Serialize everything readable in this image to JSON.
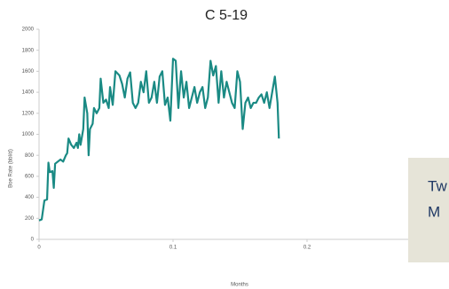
{
  "chart_data": {
    "type": "line",
    "title": "C 5-19",
    "xlabel": "Months",
    "ylabel": "Boe Rate (bbl/d)",
    "x": [
      0,
      0.002,
      0.004,
      0.006,
      0.007,
      0.008,
      0.01,
      0.011,
      0.012,
      0.014,
      0.016,
      0.018,
      0.02,
      0.021,
      0.022,
      0.024,
      0.026,
      0.028,
      0.029,
      0.03,
      0.031,
      0.033,
      0.034,
      0.036,
      0.037,
      0.038,
      0.04,
      0.041,
      0.043,
      0.045,
      0.046,
      0.048,
      0.05,
      0.052,
      0.053,
      0.055,
      0.057,
      0.06,
      0.062,
      0.064,
      0.066,
      0.068,
      0.07,
      0.072,
      0.074,
      0.076,
      0.078,
      0.08,
      0.082,
      0.084,
      0.086,
      0.088,
      0.09,
      0.092,
      0.094,
      0.096,
      0.098,
      0.1,
      0.102,
      0.104,
      0.106,
      0.108,
      0.11,
      0.112,
      0.114,
      0.116,
      0.118,
      0.12,
      0.122,
      0.124,
      0.126,
      0.128,
      0.13,
      0.132,
      0.134,
      0.136,
      0.138,
      0.14,
      0.142,
      0.144,
      0.146,
      0.148,
      0.15,
      0.152,
      0.154,
      0.156,
      0.158,
      0.16,
      0.162,
      0.164,
      0.166,
      0.168,
      0.17,
      0.172,
      0.174,
      0.176,
      0.178,
      0.179
    ],
    "series": [
      {
        "name": "C 5-19",
        "color": "#1a8a84",
        "values": [
          180,
          190,
          370,
          380,
          730,
          640,
          650,
          490,
          720,
          740,
          760,
          740,
          800,
          820,
          960,
          900,
          870,
          920,
          870,
          1000,
          900,
          1050,
          1350,
          1200,
          800,
          1050,
          1100,
          1250,
          1200,
          1250,
          1530,
          1300,
          1330,
          1250,
          1450,
          1280,
          1600,
          1560,
          1480,
          1350,
          1530,
          1590,
          1300,
          1250,
          1300,
          1500,
          1400,
          1600,
          1300,
          1350,
          1500,
          1300,
          1550,
          1600,
          1280,
          1350,
          1130,
          1720,
          1700,
          1250,
          1600,
          1350,
          1500,
          1250,
          1350,
          1450,
          1300,
          1400,
          1450,
          1250,
          1350,
          1700,
          1560,
          1650,
          1300,
          1600,
          1350,
          1500,
          1400,
          1300,
          1250,
          1600,
          1500,
          1050,
          1300,
          1350,
          1250,
          1300,
          1300,
          1350,
          1380,
          1300,
          1400,
          1250,
          1400,
          1550,
          1300,
          960
        ]
      }
    ],
    "xlim": [
      0,
      0.3
    ],
    "xticks": [
      0,
      0.1,
      0.2,
      0.3
    ],
    "ylim": [
      0,
      2000
    ],
    "yticks": [
      0,
      200,
      400,
      600,
      800,
      1000,
      1200,
      1400,
      1600,
      1800,
      2000
    ],
    "grid": false,
    "annotation": [
      "Tw",
      "M"
    ]
  }
}
